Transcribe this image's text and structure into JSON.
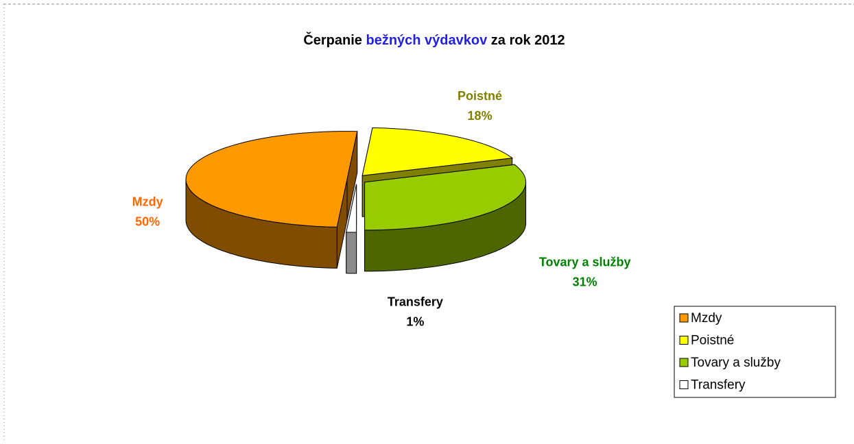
{
  "chart_data": {
    "type": "pie3d",
    "title_parts": [
      {
        "text": "Čerpanie",
        "color": "#000000"
      },
      {
        "text": "bežných výdavkov",
        "color": "#1f1fe6"
      },
      {
        "text": "za rok 2012",
        "color": "#000000"
      }
    ],
    "categories": [
      "Mzdy",
      "Poistné",
      "Tovary a služby",
      "Transfery"
    ],
    "values": [
      50,
      18,
      31,
      1
    ],
    "value_labels": [
      "50%",
      "18%",
      "31%",
      "1%"
    ],
    "colors": [
      "#ff9900",
      "#ffff00",
      "#99cc00",
      "#ffffff"
    ],
    "label_colors": [
      "#ff6600",
      "#808000",
      "#008000",
      "#000000"
    ],
    "legend": "right"
  }
}
